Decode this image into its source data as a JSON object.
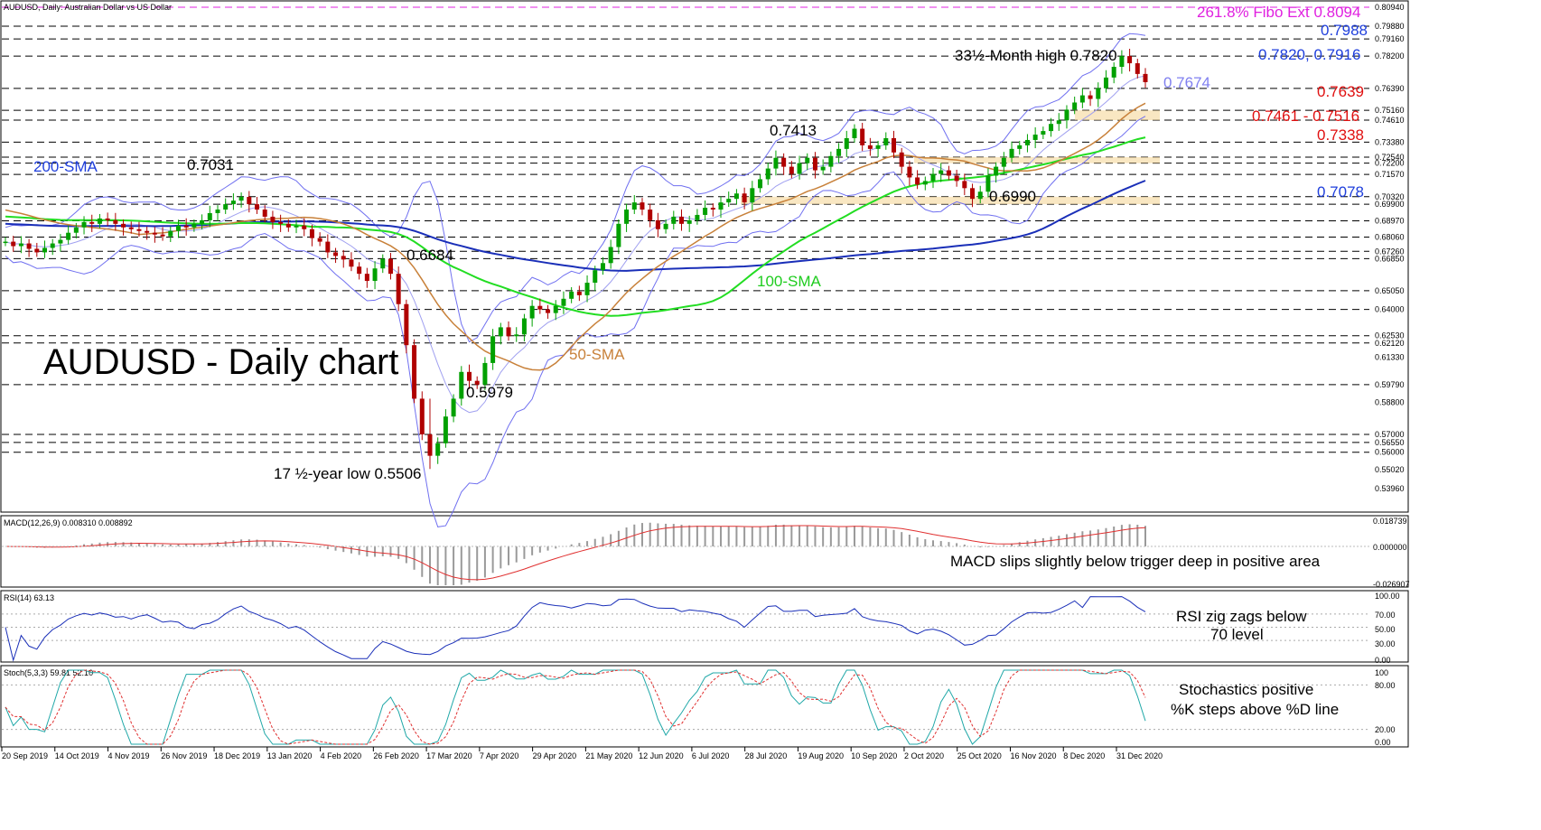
{
  "chart_data": {
    "type": "candlestick",
    "header": "AUDUSD, Daily:  Australian Dollar vs US Dollar",
    "title": "AUDUSD - Daily chart",
    "ylim": [
      0.528,
      0.815
    ],
    "x_ticks": [
      "20 Sep 2019",
      "14 Oct 2019",
      "4 Nov 2019",
      "26 Nov 2019",
      "18 Dec 2019",
      "13 Jan 2020",
      "4 Feb 2020",
      "26 Feb 2020",
      "17 Mar 2020",
      "7 Apr 2020",
      "29 Apr 2020",
      "21 May 2020",
      "12 Jun 2020",
      "6 Jul 2020",
      "28 Jul 2020",
      "19 Aug 2020",
      "10 Sep 2020",
      "2 Oct 2020",
      "25 Oct 2020",
      "16 Nov 2020",
      "8 Dec 2020",
      "31 Dec 2020"
    ],
    "price_axis_labels": [
      "0.80940",
      "0.79880",
      "0.79160",
      "0.78200",
      "0.76390",
      "0.75160",
      "0.74610",
      "0.73380",
      "0.72540",
      "0.72200",
      "0.71570",
      "0.70320",
      "0.69900",
      "0.68970",
      "0.68060",
      "0.67260",
      "0.66850",
      "0.65050",
      "0.64000",
      "0.62530",
      "0.62120",
      "0.61330",
      "0.59790",
      "0.58800",
      "0.57000",
      "0.56550",
      "0.56000",
      "0.55020",
      "0.53960"
    ],
    "key_levels": [
      {
        "label": "261.8% Fibo Ext 0.8094",
        "value": 0.8094,
        "color": "#e020e0"
      },
      {
        "label": "0.7988",
        "value": 0.7988,
        "color": "#1f3fdc"
      },
      {
        "label": "0.7820, 0.7916",
        "value": 0.782,
        "color": "#1f3fdc"
      },
      {
        "label": "0.7639",
        "value": 0.7639,
        "color": "#e01010"
      },
      {
        "label": "0.7461 - 0.7516",
        "value": 0.7516,
        "color": "#e01010"
      },
      {
        "label": "0.7338",
        "value": 0.7338,
        "color": "#e01010"
      },
      {
        "label": "0.7078",
        "value": 0.7078,
        "color": "#1f3fdc"
      }
    ],
    "dashed_levels": [
      0.7988,
      0.7916,
      0.782,
      0.7639,
      0.7516,
      0.7461,
      0.7338,
      0.7254,
      0.722,
      0.7157,
      0.7032,
      0.699,
      0.6897,
      0.6806,
      0.6726,
      0.6685,
      0.6505,
      0.64,
      0.6253,
      0.6212,
      0.5979,
      0.57,
      0.5655,
      0.56
    ],
    "zones": [
      [
        0.7461,
        0.7516
      ],
      [
        0.722,
        0.7254
      ],
      [
        0.699,
        0.7032
      ]
    ],
    "closes": [
      0.678,
      0.6755,
      0.677,
      0.674,
      0.672,
      0.6745,
      0.677,
      0.679,
      0.683,
      0.686,
      0.689,
      0.688,
      0.691,
      0.69,
      0.688,
      0.686,
      0.685,
      0.684,
      0.683,
      0.682,
      0.681,
      0.684,
      0.687,
      0.686,
      0.688,
      0.69,
      0.694,
      0.696,
      0.699,
      0.701,
      0.7031,
      0.699,
      0.696,
      0.692,
      0.689,
      0.688,
      0.686,
      0.687,
      0.685,
      0.68,
      0.678,
      0.672,
      0.67,
      0.668,
      0.664,
      0.66,
      0.656,
      0.663,
      0.6684,
      0.66,
      0.643,
      0.62,
      0.59,
      0.57,
      0.558,
      0.565,
      0.58,
      0.59,
      0.605,
      0.6,
      0.5979,
      0.61,
      0.625,
      0.63,
      0.625,
      0.626,
      0.635,
      0.642,
      0.64,
      0.638,
      0.642,
      0.646,
      0.65,
      0.648,
      0.655,
      0.662,
      0.666,
      0.675,
      0.688,
      0.696,
      0.7,
      0.696,
      0.69,
      0.685,
      0.688,
      0.692,
      0.688,
      0.69,
      0.693,
      0.697,
      0.696,
      0.7,
      0.702,
      0.705,
      0.7,
      0.708,
      0.713,
      0.719,
      0.725,
      0.72,
      0.716,
      0.722,
      0.725,
      0.718,
      0.72,
      0.726,
      0.73,
      0.736,
      0.7413,
      0.732,
      0.73,
      0.732,
      0.736,
      0.728,
      0.72,
      0.714,
      0.71,
      0.712,
      0.716,
      0.718,
      0.715,
      0.712,
      0.708,
      0.702,
      0.706,
      0.715,
      0.72,
      0.725,
      0.73,
      0.732,
      0.735,
      0.738,
      0.74,
      0.744,
      0.746,
      0.752,
      0.756,
      0.76,
      0.758,
      0.764,
      0.77,
      0.776,
      0.782,
      0.778,
      0.772,
      0.7674
    ]
  },
  "labels": {
    "sma200": "200-SMA",
    "sma100": "100-SMA",
    "sma50": "50-SMA",
    "peak1": "0.7031",
    "peak2": "0.6684",
    "low1": "0.5979",
    "low2": "17 ½-year low 0.5506",
    "peak3": "0.7413",
    "low3": "0.6990",
    "high": "33½-Month high 0.7820",
    "bb": "0.7674"
  },
  "macd": {
    "header": "MACD(12,26,9) 0.008310 0.008892",
    "note": "MACD slips slightly below trigger deep in positive area",
    "axis": [
      "0.018739",
      "0.000000",
      "-0.026907"
    ]
  },
  "rsi": {
    "header": "RSI(14) 63.13",
    "note1": "RSI zig zags below",
    "note2": "70 level",
    "axis": [
      "100.00",
      "70.00",
      "50.00",
      "30.00",
      "0.00"
    ]
  },
  "stoch": {
    "header": "Stoch(5,3,3) 59.81 52.10",
    "note1": "Stochastics positive",
    "note2": "%K steps above %D line",
    "axis": [
      "100",
      "80.00",
      "20.00",
      "0.00"
    ]
  }
}
